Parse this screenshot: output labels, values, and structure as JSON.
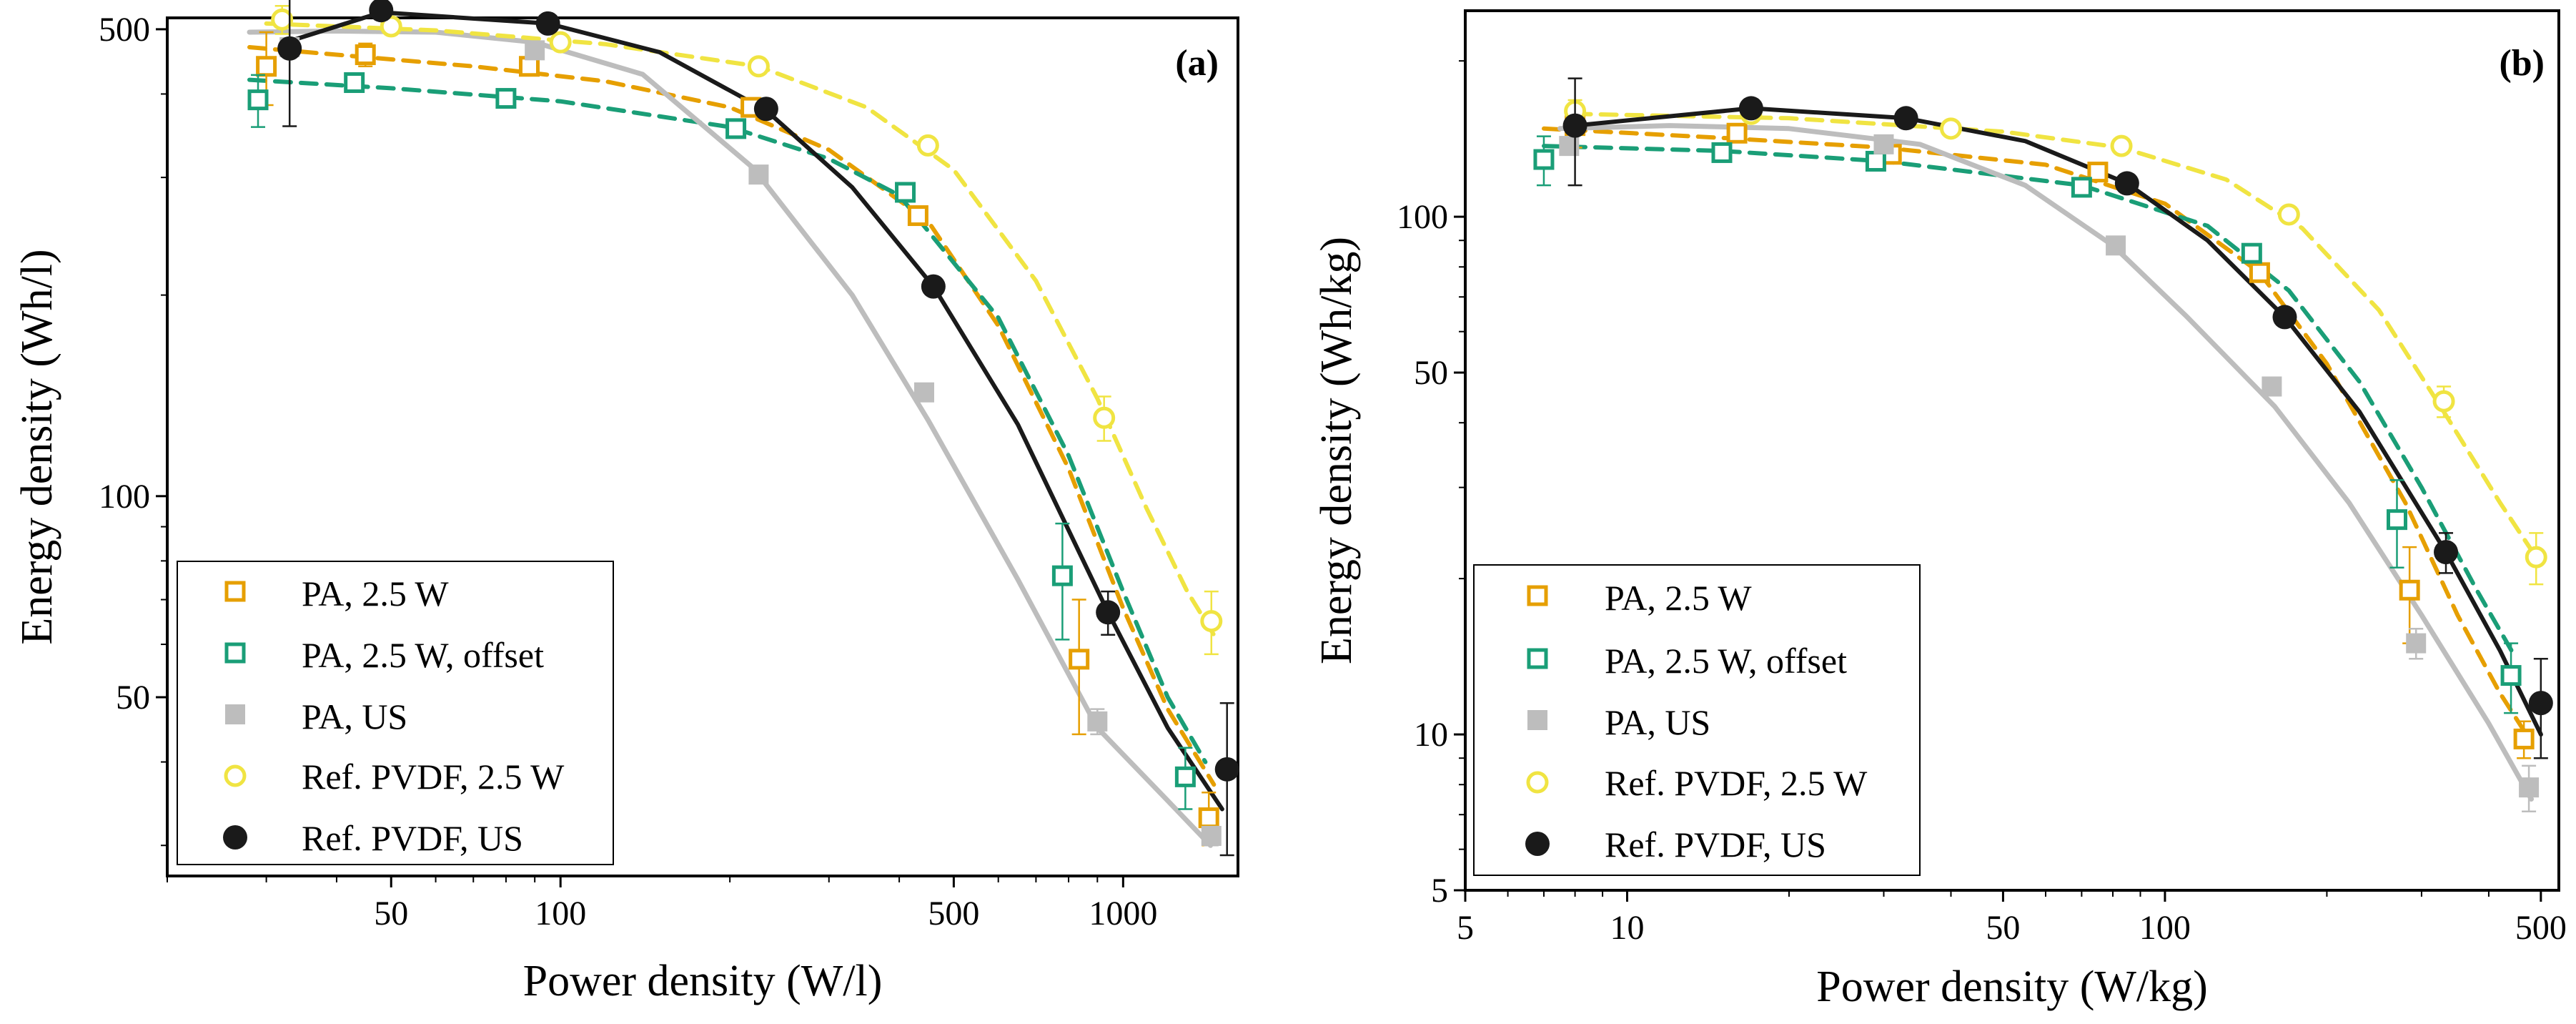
{
  "figure": {
    "legend_entries": [
      {
        "label": "PA, 2.5 W",
        "marker": "square-open",
        "color": "#e69f00"
      },
      {
        "label": "PA, 2.5 W, offset",
        "marker": "square-open",
        "color": "#1a9e77"
      },
      {
        "label": "PA, US",
        "marker": "square-filled",
        "color": "#bdbdbd"
      },
      {
        "label": "Ref. PVDF, 2.5 W",
        "marker": "circle-open",
        "color": "#f0e442"
      },
      {
        "label": "Ref. PVDF, US",
        "marker": "circle-filled",
        "color": "#1a1a1a"
      }
    ]
  },
  "chart_data": [
    {
      "type": "scatter",
      "panel_label": "(a)",
      "xlabel": "Power density (W/l)",
      "ylabel": "Energy density (Wh/l)",
      "xscale": "log",
      "yscale": "log",
      "xlim": [
        20,
        1600
      ],
      "ylim": [
        27,
        520
      ],
      "xticks": [
        50,
        100,
        500,
        1000
      ],
      "yticks": [
        50,
        100,
        500
      ],
      "legend_position": "bottom-left",
      "series": [
        {
          "name": "PA, 2.5 W",
          "marker": "square-open",
          "color": "#e69f00",
          "x": [
            30,
            45,
            88,
            218,
            432,
            835,
            1420
          ],
          "y": [
            440,
            458,
            440,
            382,
            263,
            57,
            33
          ],
          "err": [
            55,
            18,
            12,
            10,
            8,
            13,
            3
          ],
          "fit": {
            "x": [
              28,
              40,
              70,
              120,
              200,
              300,
              450,
              600,
              800,
              1000,
              1200,
              1450
            ],
            "y": [
              470,
              458,
              440,
              418,
              382,
              330,
              258,
              180,
              110,
              68,
              48,
              37
            ]
          }
        },
        {
          "name": "PA, 2.5 W, offset",
          "marker": "square-open",
          "color": "#1a9e77",
          "x": [
            29,
            43,
            80,
            205,
            410,
            780,
            1290
          ],
          "y": [
            392,
            416,
            394,
            355,
            285,
            76,
            38
          ],
          "err": [
            35,
            8,
            8,
            8,
            8,
            15,
            4
          ],
          "fit": {
            "x": [
              28,
              50,
              100,
              200,
              300,
              400,
              600,
              800,
              1000,
              1200,
              1400
            ],
            "y": [
              420,
              408,
              390,
              357,
              320,
              282,
              185,
              115,
              72,
              50,
              40
            ]
          }
        },
        {
          "name": "PA, US",
          "marker": "square-filled",
          "color": "#bdbdbd",
          "x": [
            33,
            90,
            225,
            443,
            900,
            1435
          ],
          "y": [
            470,
            465,
            303,
            143,
            46,
            31
          ],
          "err": [
            0,
            0,
            0,
            0,
            2,
            1
          ],
          "fit": {
            "x": [
              28,
              40,
              60,
              90,
              140,
              220,
              330,
              450,
              650,
              900,
              1200,
              1430
            ],
            "y": [
              495,
              497,
              495,
              478,
              428,
              310,
              200,
              130,
              75,
              45,
              35,
              30
            ]
          }
        },
        {
          "name": "Ref. PVDF, 2.5 W",
          "marker": "circle-open",
          "color": "#f0e442",
          "x": [
            32,
            50,
            100,
            225,
            450,
            925,
            1435
          ],
          "y": [
            517,
            505,
            478,
            440,
            335,
            131,
            65
          ],
          "err": [
            25,
            0,
            0,
            0,
            8,
            10,
            7
          ],
          "fit": {
            "x": [
              30,
              60,
              120,
              225,
              350,
              500,
              700,
              900,
              1100,
              1300,
              1450
            ],
            "y": [
              510,
              498,
              475,
              440,
              382,
              308,
              210,
              140,
              96,
              72,
              62
            ]
          }
        },
        {
          "name": "Ref. PVDF, US",
          "marker": "circle-filled",
          "color": "#1a1a1a",
          "x": [
            33,
            48,
            95,
            232,
            460,
            940,
            1530
          ],
          "y": [
            468,
            534,
            510,
            380,
            206,
            67,
            39
          ],
          "err": [
            110,
            0,
            0,
            0,
            0,
            5,
            10
          ],
          "fit": {
            "x": [
              33,
              48,
              95,
              150,
              232,
              330,
              460,
              650,
              940,
              1200,
              1500
            ],
            "y": [
              480,
              530,
              510,
              462,
              378,
              290,
              206,
              128,
              67,
              45,
              34
            ]
          }
        }
      ]
    },
    {
      "type": "scatter",
      "panel_label": "(b)",
      "xlabel": "Power density (W/kg)",
      "ylabel": "Energy density (Wh/kg)",
      "xscale": "log",
      "yscale": "log",
      "xlim": [
        5,
        540
      ],
      "ylim": [
        5,
        250
      ],
      "xticks": [
        5,
        10,
        50,
        100,
        500
      ],
      "yticks": [
        5,
        10,
        50,
        100
      ],
      "legend_position": "bottom-left",
      "series": [
        {
          "name": "PA, 2.5 W",
          "marker": "square-open",
          "color": "#e69f00",
          "x": [
            8,
            16,
            31,
            75,
            150,
            285,
            465
          ],
          "y": [
            150,
            145,
            132,
            122,
            78,
            19,
            9.8
          ],
          "err": [
            14,
            4,
            3,
            4,
            3,
            4,
            0.8
          ],
          "fit": {
            "x": [
              7,
              15,
              30,
              60,
              100,
              150,
              200,
              280,
              350,
              420,
              470
            ],
            "y": [
              148,
              142,
              136,
              126,
              106,
              78,
              52,
              28,
              17,
              12,
              10
            ]
          }
        },
        {
          "name": "PA, 2.5 W, offset",
          "marker": "square-open",
          "color": "#1a9e77",
          "x": [
            7,
            15,
            29,
            70,
            145,
            270,
            440
          ],
          "y": [
            129,
            133,
            128,
            114,
            85,
            26,
            13
          ],
          "err": [
            14,
            3,
            3,
            3,
            3,
            5,
            2
          ],
          "fit": {
            "x": [
              7,
              15,
              30,
              70,
              120,
              170,
              230,
              300,
              380,
              450
            ],
            "y": [
              137,
              134,
              128,
              115,
              96,
              72,
              48,
              30,
              19,
              14
            ]
          }
        },
        {
          "name": "PA, US",
          "marker": "square-filled",
          "color": "#bdbdbd",
          "x": [
            7.8,
            30,
            81,
            158,
            293,
            475
          ],
          "y": [
            137,
            138,
            88,
            47,
            15,
            7.9
          ],
          "err": [
            0,
            0,
            0,
            0,
            1,
            0.8
          ],
          "fit": {
            "x": [
              7.5,
              12,
              20,
              35,
              55,
              80,
              110,
              160,
              220,
              300,
              400,
              480
            ],
            "y": [
              148,
              150,
              148,
              138,
              115,
              88,
              64,
              43,
              28,
              17,
              10.5,
              7.5
            ]
          }
        },
        {
          "name": "Ref. PVDF, 2.5 W",
          "marker": "circle-open",
          "color": "#f0e442",
          "x": [
            8,
            17,
            40,
            83,
            170,
            330,
            490
          ],
          "y": [
            160,
            158,
            148,
            137,
            101,
            44,
            22
          ],
          "err": [
            8,
            0,
            0,
            0,
            0,
            3,
            2.5
          ],
          "fit": {
            "x": [
              8,
              20,
              50,
              83,
              130,
              180,
              250,
              330,
              420,
              490
            ],
            "y": [
              158,
              155,
              146,
              136,
              118,
              95,
              66,
              42,
              28,
              22
            ]
          }
        },
        {
          "name": "Ref. PVDF, US",
          "marker": "circle-filled",
          "color": "#1a1a1a",
          "x": [
            8,
            17,
            33,
            85,
            167,
            333,
            500
          ],
          "y": [
            150,
            162,
            155,
            116,
            64,
            22.5,
            11.5
          ],
          "err": [
            35,
            0,
            0,
            0,
            0,
            2,
            2.5
          ],
          "fit": {
            "x": [
              8,
              17,
              33,
              55,
              85,
              120,
              167,
              230,
              333,
              420,
              500
            ],
            "y": [
              150,
              162,
              155,
              140,
              116,
              90,
              64,
              42,
              22.5,
              14.5,
              10
            ]
          }
        }
      ]
    }
  ]
}
